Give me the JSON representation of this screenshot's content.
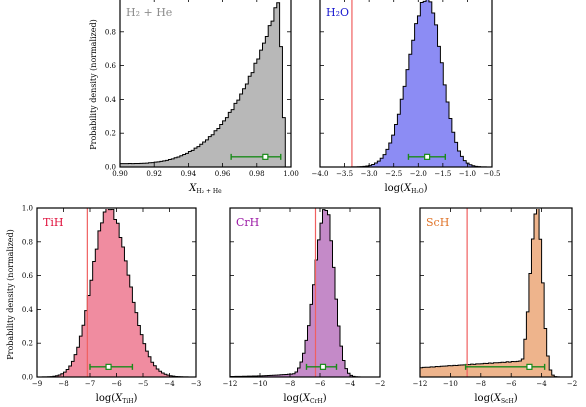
{
  "figure": {
    "y_axis_label": "Probability density (normalized)"
  },
  "chart_data": [
    {
      "id": "h2he",
      "type": "histogram",
      "label": "H₂ + He",
      "color": "#b8b8b8",
      "label_color": "#8c8c8c",
      "xlim": [
        0.9,
        1.0
      ],
      "xticks": [
        "0.90",
        "0.92",
        "0.94",
        "0.96",
        "0.98",
        "1.00"
      ],
      "ylim": [
        0,
        1.0
      ],
      "yticks": [
        "0.0",
        "0.2",
        "0.4",
        "0.6",
        "0.8"
      ],
      "x_label": {
        "base": "X",
        "sub": "H₂ + He"
      },
      "dist": {
        "kind": "skew-left",
        "peak": 0.993,
        "right_edge": 0.997
      },
      "errorbar": {
        "center": 0.985,
        "low": 0.965,
        "high": 0.994,
        "y": 0.06
      },
      "vline": null
    },
    {
      "id": "h2o",
      "type": "histogram",
      "label": "H₂O",
      "color": "#8c8cf4",
      "label_color": "#1a1ad0",
      "xlim": [
        -4.0,
        -0.5
      ],
      "xticks": [
        "−4.0",
        "−3.5",
        "−3.0",
        "−2.5",
        "−2.0",
        "−1.5",
        "−1.0",
        "−0.5"
      ],
      "ylim": [
        0,
        1.0
      ],
      "x_label": {
        "prefix": "log(",
        "base": "X",
        "sub": "H₂O",
        "suffix": ")"
      },
      "dist": {
        "kind": "skew-normal",
        "mode": -1.82,
        "sigma_left": 0.38,
        "sigma_right": 0.3
      },
      "errorbar": {
        "center": -1.82,
        "low": -2.2,
        "high": -1.45,
        "y": 0.06
      },
      "vline": -3.35
    },
    {
      "id": "tih",
      "type": "histogram",
      "label": "TiH",
      "color": "#f08ca0",
      "label_color": "#e0103c",
      "xlim": [
        -9,
        -3
      ],
      "xticks": [
        "−9",
        "−8",
        "−7",
        "−6",
        "−5",
        "−4",
        "−3"
      ],
      "ylim": [
        0,
        1.0
      ],
      "yticks": [
        "0.0",
        "0.2",
        "0.4",
        "0.6",
        "0.8",
        "1.0"
      ],
      "x_label": {
        "prefix": "log(",
        "base": "X",
        "sub": "TiH",
        "suffix": ")"
      },
      "dist": {
        "kind": "skew-normal",
        "mode": -6.3,
        "sigma_left": 0.62,
        "sigma_right": 0.75
      },
      "errorbar": {
        "center": -6.3,
        "low": -7.0,
        "high": -5.4,
        "y": 0.06
      },
      "vline": -7.1
    },
    {
      "id": "crh",
      "type": "histogram",
      "label": "CrH",
      "color": "#c48ac8",
      "label_color": "#9c1aa6",
      "xlim": [
        -12,
        -2
      ],
      "xticks": [
        "−12",
        "−10",
        "−8",
        "−6",
        "−4",
        "−2"
      ],
      "ylim": [
        0,
        1.0
      ],
      "x_label": {
        "prefix": "log(",
        "base": "X",
        "sub": "CrH",
        "suffix": ")"
      },
      "dist": {
        "kind": "skew-left",
        "mode": -5.6,
        "sigma_left": 0.75,
        "sigma_right": 0.55,
        "tail": 0.05
      },
      "errorbar": {
        "center": -5.8,
        "low": -6.9,
        "high": -4.9,
        "y": 0.06
      },
      "vline": -6.3
    },
    {
      "id": "sch",
      "type": "histogram",
      "label": "ScH",
      "color": "#eeb48c",
      "label_color": "#e0742a",
      "xlim": [
        -12,
        -2
      ],
      "xticks": [
        "−12",
        "−10",
        "−8",
        "−6",
        "−4",
        "−2"
      ],
      "ylim": [
        0,
        1.0
      ],
      "x_label": {
        "prefix": "log(",
        "base": "X",
        "sub": "ScH",
        "suffix": ")"
      },
      "dist": {
        "kind": "peak-with-plateau",
        "mode": -4.3,
        "sigma_left": 0.45,
        "sigma_right": 0.35,
        "plateau": 0.1
      },
      "errorbar": {
        "center": -4.8,
        "low": -9.0,
        "high": -3.8,
        "y": 0.06
      },
      "vline": -8.9
    }
  ]
}
